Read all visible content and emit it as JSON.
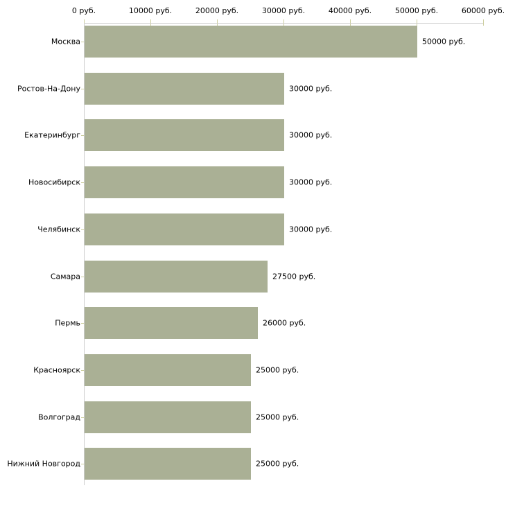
{
  "chart_data": {
    "type": "bar",
    "orientation": "horizontal",
    "title": "",
    "xlabel": "",
    "ylabel": "",
    "categories": [
      "Москва",
      "Ростов-На-Дону",
      "Екатеринбург",
      "Новосибирск",
      "Челябинск",
      "Самара",
      "Пермь",
      "Красноярск",
      "Волгоград",
      "Нижний Новгород"
    ],
    "values": [
      50000,
      30000,
      30000,
      30000,
      30000,
      27500,
      26000,
      25000,
      25000,
      25000
    ],
    "value_labels": [
      "50000 руб.",
      "30000 руб.",
      "30000 руб.",
      "30000 руб.",
      "30000 руб.",
      "27500 руб.",
      "26000 руб.",
      "25000 руб.",
      "25000 руб.",
      "25000 руб."
    ],
    "unit": "руб.",
    "xlim": [
      0,
      60000
    ],
    "x_ticks": [
      {
        "value": 0,
        "label": "0 руб."
      },
      {
        "value": 10000,
        "label": "10000 руб."
      },
      {
        "value": 20000,
        "label": "20000 руб."
      },
      {
        "value": 30000,
        "label": "30000 руб."
      },
      {
        "value": 40000,
        "label": "40000 руб."
      },
      {
        "value": 50000,
        "label": "50000 руб."
      },
      {
        "value": 60000,
        "label": "60000 руб."
      }
    ],
    "legend": "none",
    "grid": "off",
    "colors": {
      "bar_fill": "#aab095",
      "axis_line": "#cccccc",
      "tick_mark": "#ccce9e",
      "text": "#000000",
      "background": "#ffffff"
    }
  }
}
